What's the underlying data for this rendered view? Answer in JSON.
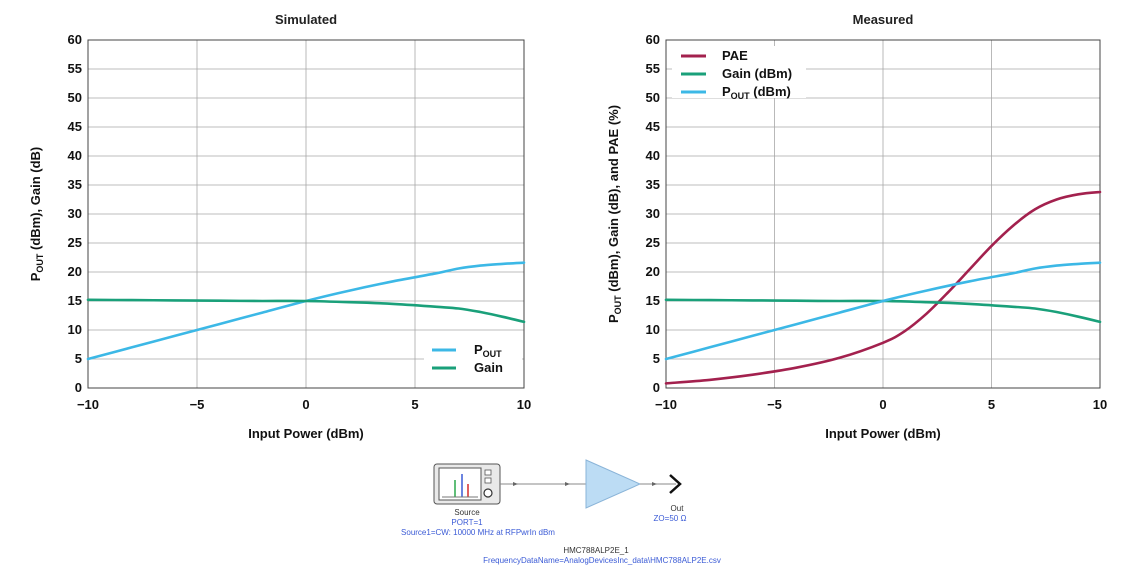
{
  "chart_data": [
    {
      "type": "line",
      "title": "Simulated",
      "xlabel": "Input Power (dBm)",
      "ylabel": {
        "main": "P",
        "sub": "OUT",
        "rest": " (dBm), Gain (dB)"
      },
      "xlim": [
        -10,
        10
      ],
      "ylim": [
        0,
        60
      ],
      "xticks": [
        "−10",
        "−5",
        "0",
        "5",
        "10"
      ],
      "yticks": [
        "0",
        "5",
        "10",
        "15",
        "20",
        "25",
        "30",
        "35",
        "40",
        "45",
        "50",
        "55",
        "60"
      ],
      "grid": true,
      "legend_position": "bottom-right",
      "series": [
        {
          "key": "pout",
          "name": "P",
          "name_sub": "OUT",
          "color": "#3cb8e6",
          "x": [
            -10,
            -8,
            -6,
            -4,
            -2,
            0,
            2,
            4,
            6,
            7,
            8,
            9,
            10
          ],
          "y": [
            5,
            7,
            9,
            11,
            13,
            15,
            16.8,
            18.4,
            19.8,
            20.6,
            21.1,
            21.4,
            21.6
          ]
        },
        {
          "key": "gain",
          "name": "Gain",
          "color": "#1aa07a",
          "x": [
            -10,
            -8,
            -6,
            -4,
            -2,
            0,
            2,
            4,
            6,
            7,
            8,
            9,
            10
          ],
          "y": [
            15.2,
            15.15,
            15.1,
            15.05,
            15.0,
            15.0,
            14.8,
            14.5,
            14.0,
            13.7,
            13.1,
            12.3,
            11.4
          ]
        }
      ]
    },
    {
      "type": "line",
      "title": "Measured",
      "xlabel": "Input Power (dBm)",
      "ylabel": {
        "main": "P",
        "sub": "OUT",
        "rest": " (dBm), Gain (dB), and PAE (%)"
      },
      "xlim": [
        -10,
        10
      ],
      "ylim": [
        0,
        60
      ],
      "xticks": [
        "−10",
        "−5",
        "0",
        "5",
        "10"
      ],
      "yticks": [
        "0",
        "5",
        "10",
        "15",
        "20",
        "25",
        "30",
        "35",
        "40",
        "45",
        "50",
        "55",
        "60"
      ],
      "grid": true,
      "legend_position": "top-left",
      "series": [
        {
          "key": "pae",
          "name": "PAE",
          "color": "#a3214e",
          "x": [
            -10,
            -8,
            -6,
            -4,
            -2,
            0,
            1,
            2,
            3,
            4,
            5,
            6,
            7,
            8,
            9,
            10
          ],
          "y": [
            0.8,
            1.4,
            2.3,
            3.5,
            5.2,
            7.8,
            9.8,
            12.8,
            16.5,
            20.5,
            24.5,
            28.0,
            30.8,
            32.5,
            33.4,
            33.8
          ]
        },
        {
          "key": "gain",
          "name": "Gain (dBm)",
          "color": "#1aa07a",
          "x": [
            -10,
            -8,
            -6,
            -4,
            -2,
            0,
            2,
            4,
            6,
            7,
            8,
            9,
            10
          ],
          "y": [
            15.2,
            15.15,
            15.1,
            15.05,
            15.0,
            15.0,
            14.8,
            14.5,
            14.0,
            13.7,
            13.1,
            12.3,
            11.4
          ]
        },
        {
          "key": "pout",
          "name": "P",
          "name_sub": "OUT",
          "name_rest": " (dBm)",
          "color": "#3cb8e6",
          "x": [
            -10,
            -8,
            -6,
            -4,
            -2,
            0,
            2,
            4,
            6,
            7,
            8,
            9,
            10
          ],
          "y": [
            5,
            7,
            9,
            11,
            13,
            15,
            16.8,
            18.4,
            19.8,
            20.6,
            21.1,
            21.4,
            21.6
          ]
        }
      ]
    }
  ],
  "schematic": {
    "source_label": "Source",
    "source_port": "PORT=1",
    "source_param": "Source1=CW: 10000 MHz at RFPwrIn dBm",
    "out_label": "Out",
    "out_param": "ZO=50 Ω",
    "amp_name": "HMC788ALP2E_1",
    "amp_param": "FrequencyDataName=AnalogDevicesInc_data\\HMC788ALP2E.csv",
    "amp_color": "#bcdcf4",
    "icons": [
      "spectrum-analyzer-icon",
      "amplifier-triangle-icon",
      "arrow-right-icon"
    ]
  }
}
